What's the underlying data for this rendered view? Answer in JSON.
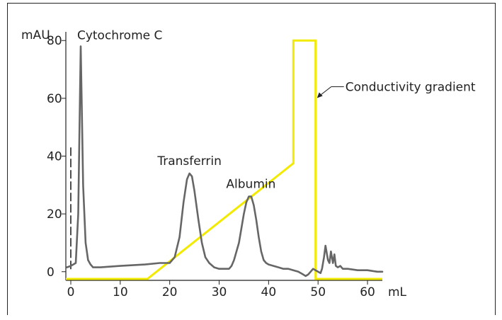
{
  "chart_data": {
    "type": "line",
    "xlabel": "mL",
    "ylabel": "mAU",
    "xlim": [
      -1,
      63
    ],
    "ylim": [
      -3,
      83
    ],
    "x_ticks": [
      0,
      10,
      20,
      30,
      40,
      50,
      60
    ],
    "y_ticks": [
      0,
      20,
      40,
      60,
      80
    ],
    "x_tick_labels": [
      "0",
      "10",
      "20",
      "30",
      "40",
      "50",
      "60"
    ],
    "y_tick_labels": [
      "0",
      "20",
      "40",
      "60",
      "80"
    ],
    "grid": false,
    "colors": {
      "absorbance": "#666666",
      "gradient": "#f2ea00",
      "axis": "#222222",
      "injection": "#222222"
    },
    "series": [
      {
        "x": [
          -0.8,
          0,
          1,
          1.5,
          1.8,
          2.0,
          2.2,
          2.5,
          3,
          3.5,
          4,
          4.5,
          6,
          10,
          15,
          18,
          20,
          21,
          22,
          22.8,
          23.5,
          24,
          24.5,
          25,
          25.8,
          26.5,
          27.2,
          28,
          29,
          30,
          31,
          32,
          32.5,
          33,
          34,
          35,
          35.5,
          36,
          36.5,
          37,
          37.5,
          38,
          38.5,
          39,
          39.5,
          40,
          41,
          42,
          43,
          44,
          45,
          46,
          46.5,
          47,
          47.5,
          48,
          48.5,
          49,
          49.5,
          50,
          50.5,
          50.8,
          51.2,
          51.5,
          52,
          52.3,
          52.6,
          53,
          53.3,
          53.6,
          54,
          54.5,
          55,
          56,
          58,
          60,
          62,
          63
        ],
        "y": [
          1.5,
          2,
          3,
          20,
          55,
          78,
          60,
          30,
          10,
          4,
          2.5,
          1.5,
          1.5,
          2,
          2.5,
          3,
          3,
          5,
          12,
          24,
          32,
          34,
          33,
          28,
          18,
          10,
          5,
          3,
          1.5,
          1,
          1,
          1,
          2,
          4,
          10,
          20,
          24,
          26,
          26,
          23,
          18,
          12,
          7,
          4,
          3,
          2.5,
          2,
          1.5,
          1,
          1,
          0.5,
          0,
          -0.5,
          -1,
          -1.5,
          -1,
          0,
          1,
          0.5,
          0,
          -0.5,
          1,
          5,
          9,
          4,
          3,
          7,
          3,
          6,
          2,
          1.5,
          2,
          1,
          1,
          0.5,
          0.5,
          0,
          0
        ]
      },
      {
        "x": [
          -1,
          15.5,
          45,
          45,
          49.5,
          49.5,
          63
        ],
        "y": [
          -2.5,
          -2.5,
          37.5,
          80,
          80,
          -2.5,
          -2.5
        ]
      }
    ],
    "annotations": [
      {
        "text": "Cytochrome C",
        "x": 2.0,
        "y": 78
      },
      {
        "text": "Transferrin",
        "x": 24,
        "y": 34
      },
      {
        "text": "Albumin",
        "x": 37,
        "y": 26
      },
      {
        "text": "Conductivity gradient",
        "x": 49.5,
        "y": 64
      }
    ],
    "injection_marker_x": 0,
    "injection_marker_ylim": [
      0,
      43
    ]
  }
}
